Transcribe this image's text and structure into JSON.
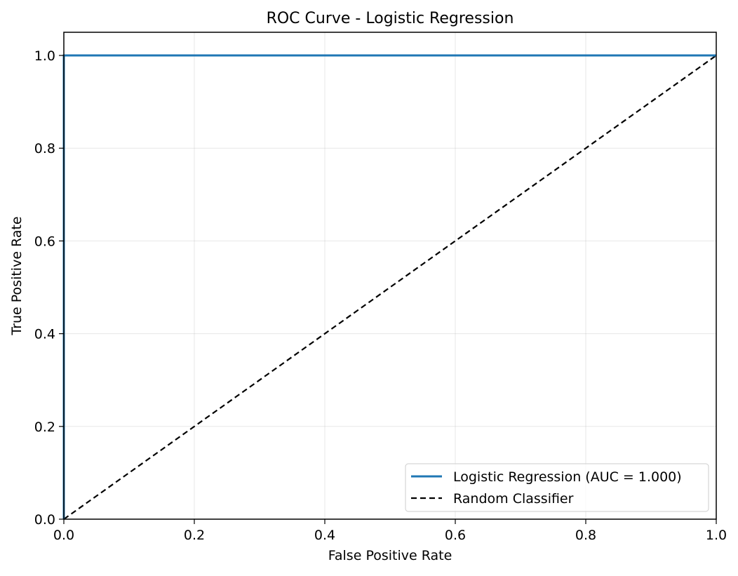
{
  "chart_data": {
    "type": "line",
    "title": "ROC Curve - Logistic Regression",
    "xlabel": "False Positive Rate",
    "ylabel": "True Positive Rate",
    "xlim": [
      0.0,
      1.0
    ],
    "ylim": [
      0.0,
      1.05
    ],
    "xticks": [
      0.0,
      0.2,
      0.4,
      0.6,
      0.8,
      1.0
    ],
    "yticks": [
      0.0,
      0.2,
      0.4,
      0.6,
      0.8,
      1.0
    ],
    "xtick_labels": [
      "0.0",
      "0.2",
      "0.4",
      "0.6",
      "0.8",
      "1.0"
    ],
    "ytick_labels": [
      "0.0",
      "0.2",
      "0.4",
      "0.6",
      "0.8",
      "1.0"
    ],
    "grid": true,
    "legend_position": "lower-right",
    "series": [
      {
        "name": "Logistic Regression (AUC = 1.000)",
        "color": "#1f77b4",
        "style": "solid",
        "x": [
          0.0,
          0.0,
          1.0
        ],
        "y": [
          0.0,
          1.0,
          1.0
        ]
      },
      {
        "name": "Random Classifier",
        "color": "#000000",
        "style": "dashed",
        "x": [
          0.0,
          1.0
        ],
        "y": [
          0.0,
          1.0
        ]
      }
    ]
  }
}
